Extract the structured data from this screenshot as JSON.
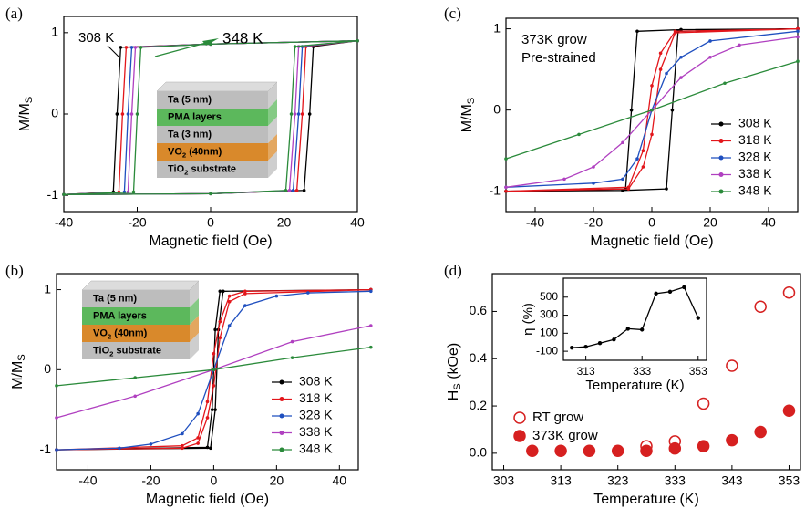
{
  "chart_data": [
    {
      "type": "line",
      "panel": "(a)",
      "xlabel": "Magnetic field (Oe)",
      "ylabel": [
        "M/M",
        "S"
      ],
      "xlim": [
        -40,
        40
      ],
      "xticks": [
        -40,
        -20,
        0,
        20,
        40
      ],
      "ylim": [
        -1.2,
        1.2
      ],
      "yticks": [
        -1,
        0,
        1
      ],
      "annotations": [
        {
          "text": "308 K",
          "color": "#000000"
        },
        {
          "text": "348 K",
          "color": "#2a8a3a"
        }
      ],
      "stack": {
        "layers": [
          [
            "Ta (5 nm)"
          ],
          [
            "PMA layers"
          ],
          [
            "Ta (3 nm)"
          ],
          [
            "VO",
            "2",
            " (40nm)"
          ],
          [
            "TiO",
            "2",
            " substrate"
          ]
        ],
        "colors": [
          "#bdbdbd",
          "#5cb85c",
          "#bdbdbd",
          "#d9892b",
          "#bdbdbd"
        ]
      },
      "series": [
        {
          "name": "308 K",
          "color": "#000000",
          "x": [
            40,
            0,
            -24.5,
            -25.5,
            -26.5,
            -40,
            0,
            25.5,
            27,
            28,
            40
          ],
          "values": [
            0.9,
            0.86,
            0.82,
            0,
            -0.96,
            -0.99,
            -0.98,
            -0.94,
            0,
            0.83,
            0.9
          ]
        },
        {
          "name": "318 K",
          "color": "#e3161b",
          "x": [
            40,
            0,
            -23,
            -24,
            -25,
            -40,
            0,
            23.5,
            25,
            26,
            40
          ],
          "values": [
            0.9,
            0.86,
            0.82,
            0,
            -0.96,
            -0.99,
            -0.98,
            -0.94,
            0,
            0.83,
            0.9
          ]
        },
        {
          "name": "328 K",
          "color": "#1f4fbf",
          "x": [
            40,
            0,
            -21.5,
            -22.5,
            -23.5,
            -40,
            0,
            22.5,
            24,
            25,
            40
          ],
          "values": [
            0.9,
            0.86,
            0.82,
            0,
            -0.96,
            -0.99,
            -0.98,
            -0.94,
            0,
            0.83,
            0.9
          ]
        },
        {
          "name": "338 K",
          "color": "#b040c0",
          "x": [
            40,
            0,
            -20.5,
            -21.5,
            -22.5,
            -40,
            0,
            21.5,
            23,
            24,
            40
          ],
          "values": [
            0.9,
            0.86,
            0.82,
            0,
            -0.96,
            -0.99,
            -0.98,
            -0.94,
            0,
            0.83,
            0.9
          ]
        },
        {
          "name": "348 K",
          "color": "#2a8a3a",
          "x": [
            40,
            0,
            -19,
            -20,
            -21,
            -40,
            0,
            20.5,
            22,
            23,
            40
          ],
          "values": [
            0.9,
            0.86,
            0.82,
            0,
            -0.96,
            -0.99,
            -0.98,
            -0.94,
            0,
            0.83,
            0.9
          ]
        }
      ]
    },
    {
      "type": "line",
      "panel": "(b)",
      "xlabel": "Magnetic field (Oe)",
      "ylabel": [
        "M/M",
        "S"
      ],
      "xlim": [
        -50,
        46
      ],
      "xticks": [
        -40,
        -20,
        0,
        20,
        40
      ],
      "ylim": [
        -1.25,
        1.2
      ],
      "yticks": [
        -1,
        0,
        1
      ],
      "legend": "lower right",
      "stack": {
        "layers": [
          [
            "Ta (5 nm)"
          ],
          [
            "PMA layers"
          ],
          [
            "VO",
            "2",
            " (40nm)"
          ],
          [
            "TiO",
            "2",
            " substrate"
          ]
        ],
        "colors": [
          "#bdbdbd",
          "#5cb85c",
          "#d9892b",
          "#bdbdbd"
        ]
      },
      "series": [
        {
          "name": "308 K",
          "color": "#000000",
          "x": [
            50,
            2,
            0.5,
            -0.5,
            -2,
            -50,
            -1,
            0.5,
            1.5,
            3,
            50
          ],
          "values": [
            1,
            0.98,
            0.5,
            -0.5,
            -0.97,
            -1,
            -0.98,
            -0.5,
            0.5,
            0.98,
            1
          ]
        },
        {
          "name": "318 K",
          "color": "#e3161b",
          "x": [
            50,
            10,
            5,
            2,
            0,
            -2,
            -5,
            -10,
            -50,
            -10,
            -5,
            -2,
            0,
            2,
            5,
            10,
            50
          ],
          "values": [
            1,
            0.98,
            0.92,
            0.6,
            0.2,
            -0.4,
            -0.85,
            -0.95,
            -1,
            -0.98,
            -0.92,
            -0.6,
            -0.2,
            0.4,
            0.85,
            0.95,
            1
          ]
        },
        {
          "name": "328 K",
          "color": "#1f4fbf",
          "x": [
            -50,
            -30,
            -20,
            -10,
            -5,
            0,
            5,
            10,
            20,
            30,
            50
          ],
          "values": [
            -1,
            -0.98,
            -0.93,
            -0.8,
            -0.55,
            0,
            0.55,
            0.8,
            0.92,
            0.96,
            0.98
          ]
        },
        {
          "name": "338 K",
          "color": "#b040c0",
          "x": [
            -50,
            -25,
            0,
            25,
            50
          ],
          "values": [
            -0.6,
            -0.33,
            0,
            0.35,
            0.55
          ]
        },
        {
          "name": "348 K",
          "color": "#2a8a3a",
          "x": [
            -50,
            -25,
            0,
            25,
            50
          ],
          "values": [
            -0.2,
            -0.1,
            0,
            0.15,
            0.28
          ]
        }
      ]
    },
    {
      "type": "line",
      "panel": "(c)",
      "xlabel": "Magnetic field (Oe)",
      "ylabel": [
        "M/M",
        "S"
      ],
      "xlim": [
        -50,
        50
      ],
      "xticks": [
        -40,
        -20,
        0,
        20,
        40
      ],
      "ylim": [
        -1.25,
        1.13
      ],
      "yticks": [
        -1,
        0,
        1
      ],
      "legend": "lower right",
      "annotations": [
        {
          "text": "373K grow",
          "color": "#e3161b"
        },
        {
          "text": "Pre-strained",
          "color": "#e3161b"
        }
      ],
      "series": [
        {
          "name": "308 K",
          "color": "#000000",
          "x": [
            50,
            10,
            -5,
            -7,
            -9,
            -50,
            -50,
            -10,
            5,
            7,
            9,
            50
          ],
          "values": [
            1,
            0.99,
            0.97,
            0,
            -0.97,
            -1,
            -1,
            -0.99,
            -0.97,
            0,
            0.97,
            1
          ]
        },
        {
          "name": "318 K",
          "color": "#e3161b",
          "x": [
            50,
            8,
            3,
            0,
            -3,
            -8,
            -50,
            -8,
            -3,
            0,
            3,
            8,
            50
          ],
          "values": [
            1,
            0.97,
            0.7,
            0.3,
            -0.5,
            -0.95,
            -1,
            -0.97,
            -0.7,
            -0.3,
            0.5,
            0.95,
            1
          ]
        },
        {
          "name": "328 K",
          "color": "#1f4fbf",
          "x": [
            -50,
            -20,
            -10,
            -5,
            0,
            5,
            10,
            20,
            50
          ],
          "values": [
            -0.95,
            -0.9,
            -0.85,
            -0.6,
            0,
            0.45,
            0.65,
            0.85,
            0.97
          ]
        },
        {
          "name": "338 K",
          "color": "#b040c0",
          "x": [
            -50,
            -30,
            -20,
            -10,
            0,
            10,
            20,
            30,
            50
          ],
          "values": [
            -0.95,
            -0.85,
            -0.7,
            -0.4,
            0,
            0.4,
            0.65,
            0.8,
            0.9
          ]
        },
        {
          "name": "348 K",
          "color": "#2a8a3a",
          "x": [
            -50,
            -25,
            0,
            25,
            50
          ],
          "values": [
            -0.6,
            -0.3,
            0,
            0.33,
            0.6
          ]
        }
      ]
    },
    {
      "type": "scatter",
      "panel": "(d)",
      "xlabel": "Temperature (K)",
      "ylabel": [
        "H",
        "S",
        " (kOe)"
      ],
      "xlim": [
        301,
        355
      ],
      "xticks": [
        303,
        313,
        323,
        333,
        343,
        353
      ],
      "ylim": [
        -0.07,
        0.76
      ],
      "yticks": [
        {
          "value": 0,
          "label": "0.0"
        },
        0.2,
        0.4,
        0.6
      ],
      "legend": "lower left",
      "series": [
        {
          "name": "RT grow",
          "color": "#d62020",
          "marker": "open",
          "x": [
            328,
            333,
            338,
            343,
            348,
            353
          ],
          "values": [
            0.03,
            0.05,
            0.21,
            0.37,
            0.62,
            0.68
          ]
        },
        {
          "name": "373K grow",
          "color": "#d62020",
          "marker": "filled",
          "x": [
            308,
            313,
            318,
            323,
            328,
            333,
            338,
            343,
            348,
            353
          ],
          "values": [
            0.01,
            0.01,
            0.01,
            0.01,
            0.01,
            0.02,
            0.03,
            0.055,
            0.09,
            0.18
          ]
        }
      ]
    },
    {
      "type": "line",
      "xlabel": "Temperature (K)",
      "ylabel": [
        "η (%)"
      ],
      "xlim": [
        305,
        356
      ],
      "xticks": [
        313,
        333,
        353
      ],
      "ylim": [
        -200,
        710
      ],
      "yticks": [
        -100,
        100,
        300,
        500
      ],
      "series": [
        {
          "color": "#000000",
          "x": [
            308,
            313,
            318,
            323,
            328,
            333,
            338,
            343,
            348,
            353
          ],
          "values": [
            -60,
            -50,
            -10,
            30,
            150,
            140,
            540,
            560,
            610,
            270
          ]
        }
      ]
    }
  ]
}
